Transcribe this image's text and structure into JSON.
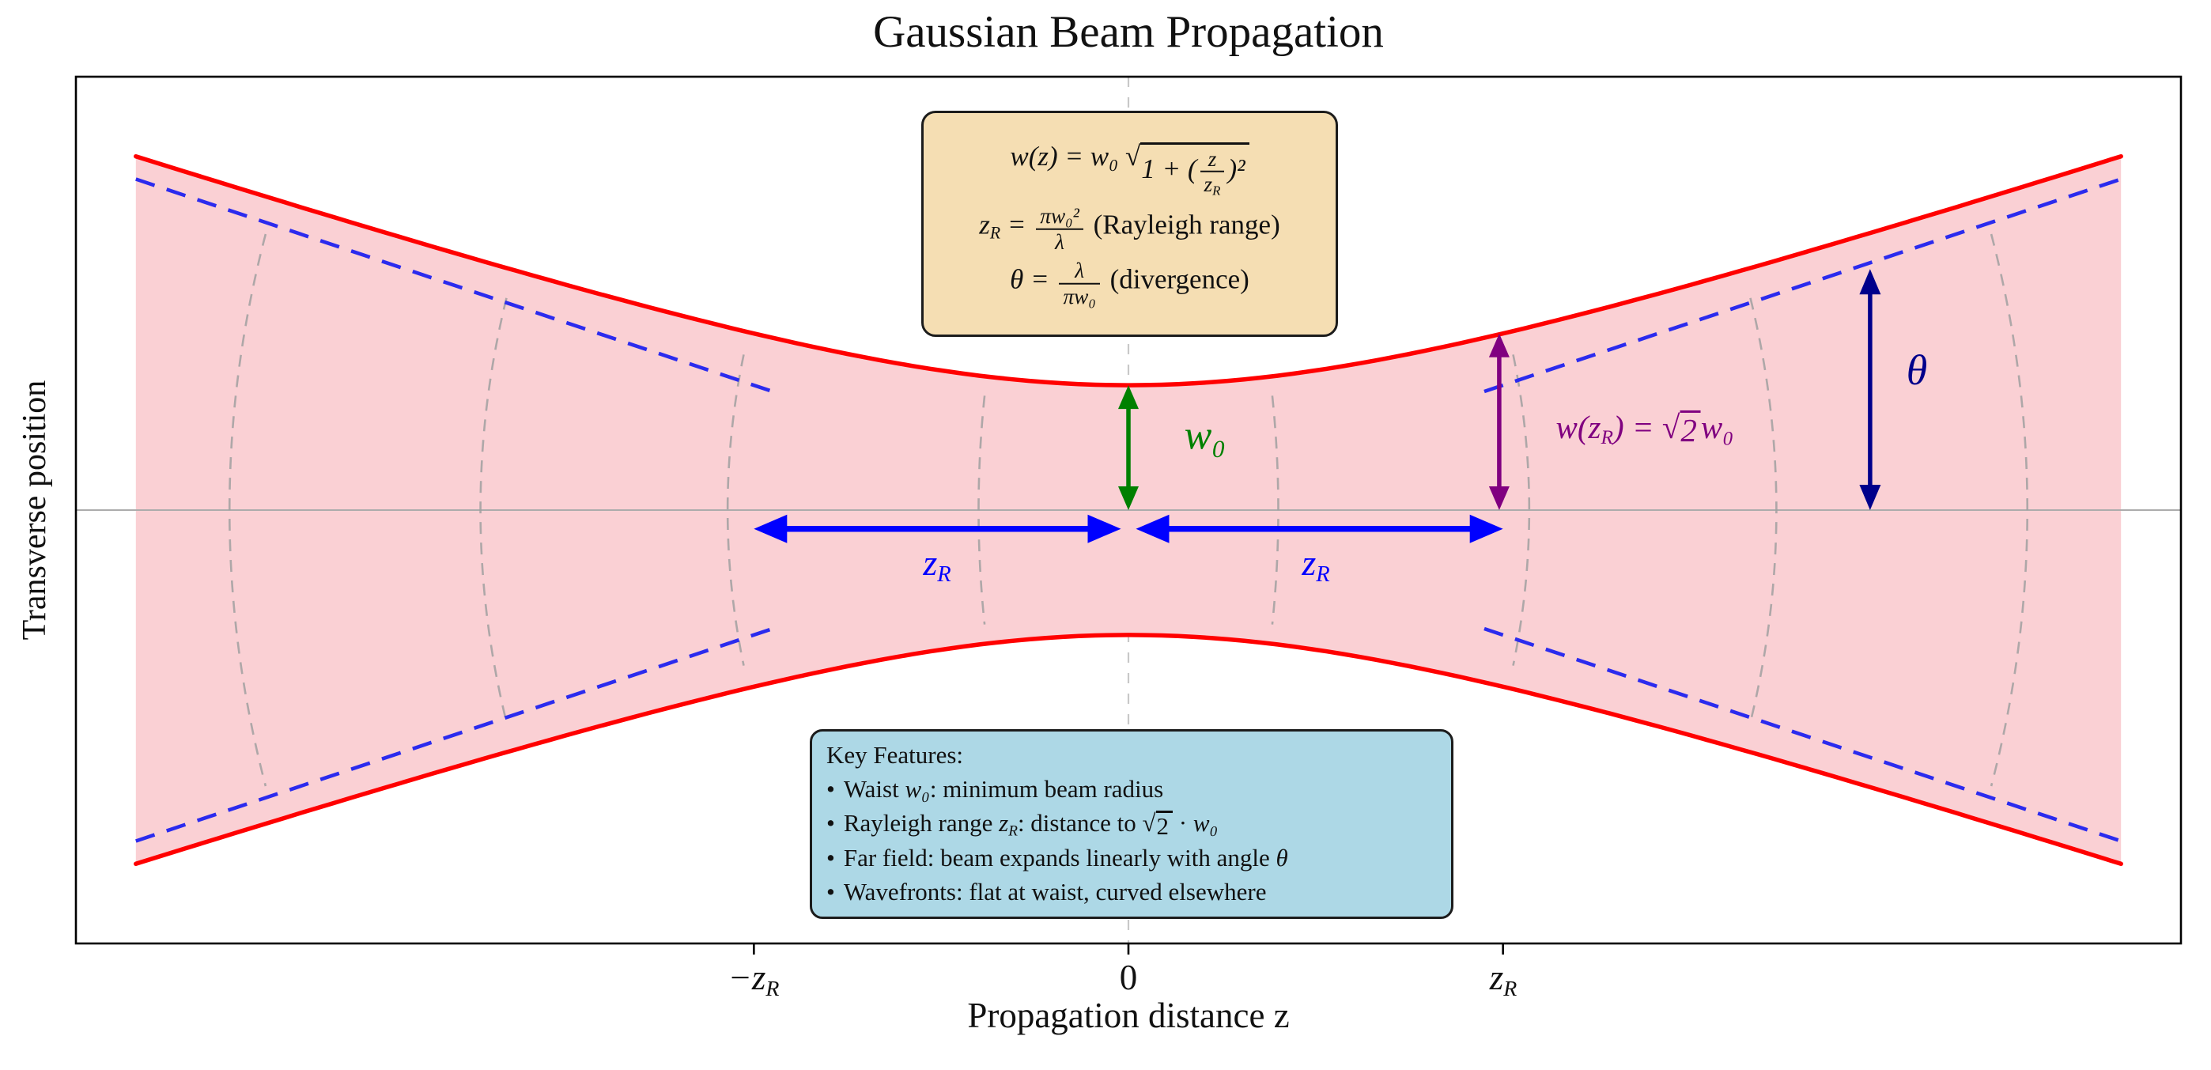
{
  "title": "Gaussian Beam Propagation",
  "axes": {
    "xlabel": "Propagation distance z",
    "ylabel": "Transverse position",
    "xtick_segments": [
      [
        {
          "i": [
            "−z",
            {
              "sub": [
                "R"
              ]
            }
          ]
        }
      ],
      [
        "0"
      ],
      [
        {
          "i": [
            "z",
            {
              "sub": [
                "R"
              ]
            }
          ]
        }
      ]
    ]
  },
  "formula_box": {
    "lines": [
      [
        "w(z) = w₀ ",
        {
          "sqrt": [
            "1 + (",
            {
              "frac": [
                [
                  "z"
                ],
                [
                  "z",
                  {
                    "sub": [
                      "R"
                    ]
                  }
                ]
              ]
            },
            ")²"
          ]
        }
      ],
      [
        "z",
        {
          "sub": [
            "R"
          ]
        },
        " = ",
        {
          "frac": [
            [
              "πw₀²"
            ],
            [
              "λ"
            ]
          ]
        },
        {
          "up": [
            " (Rayleigh range)"
          ]
        }
      ],
      [
        "θ = ",
        {
          "frac": [
            [
              "λ"
            ],
            [
              "πw₀"
            ]
          ]
        },
        {
          "up": [
            " (divergence)"
          ]
        }
      ]
    ]
  },
  "features_box": {
    "heading": "Key Features:",
    "bullet": "•",
    "items": [
      [
        "Waist ",
        {
          "i": [
            "w₀"
          ]
        },
        ": minimum beam radius"
      ],
      [
        "Rayleigh range ",
        {
          "i": [
            "z",
            {
              "sub": [
                "R"
              ]
            }
          ]
        },
        ": distance to ",
        {
          "sqrt": [
            "2"
          ]
        },
        " · ",
        {
          "i": [
            "w₀"
          ]
        }
      ],
      [
        "Far field: beam expands linearly with angle ",
        {
          "i": [
            "θ"
          ]
        }
      ],
      [
        "Wavefronts: flat at waist, curved elsewhere"
      ]
    ]
  },
  "annotations": {
    "w0_label": [
      "w₀"
    ],
    "zR_left_label": [
      "z",
      {
        "sub": [
          "R"
        ]
      }
    ],
    "zR_right_label": [
      "z",
      {
        "sub": [
          "R"
        ]
      }
    ],
    "w_at_zR_label": [
      "w(z",
      {
        "sub": [
          "R"
        ]
      },
      ") = ",
      {
        "sqrt": [
          "2"
        ]
      },
      "w₀"
    ],
    "theta_label": [
      "θ"
    ]
  },
  "colors": {
    "envelope_red": "#FF0000",
    "fill_pink": "#FAD0D4",
    "asymptote_blue": "#2B2BEE",
    "arrow_blue": "#0000FF",
    "green": "#008000",
    "purple": "#800080",
    "darkblue": "#00008B",
    "wavefront_gray": "#A0A0A0",
    "centerline_gray": "#C8C8C8",
    "axisline_gray": "#ACACAC",
    "frame_black": "#000000",
    "formula_bg": "#F5DEB3",
    "features_bg": "#ADD8E6",
    "box_border": "#1C1C1C"
  },
  "chart_data": {
    "type": "line",
    "title": "Gaussian Beam Propagation",
    "xlabel": "Propagation distance z",
    "ylabel": "Transverse position",
    "x_ticks": [
      {
        "z_over_zR": -1,
        "label": "-z_R"
      },
      {
        "z_over_zR": 0,
        "label": "0"
      },
      {
        "z_over_zR": 1,
        "label": "z_R"
      }
    ],
    "xlim_zR": [
      -2.81,
      2.81
    ],
    "ylim_w0": [
      -3.47,
      3.47
    ],
    "grid": false,
    "legend": "none",
    "beam": {
      "w0_normalized": 1,
      "zR_normalized": 1,
      "z_extent_zR": 2.65,
      "envelope_formula": "w(z) = w0*sqrt(1+(z/zR)^2)"
    },
    "envelope_samples": {
      "z_over_zR": [
        -2.65,
        -2,
        -1.5,
        -1,
        -0.5,
        0,
        0.5,
        1,
        1.5,
        2,
        2.65
      ],
      "w_over_w0": [
        2.83,
        2.24,
        1.8,
        1.41,
        1.12,
        1.0,
        1.12,
        1.41,
        1.8,
        2.24,
        2.83
      ]
    },
    "asymptotes": {
      "slope_w0_per_zR": 1,
      "segments_zR": [
        [
          -2.65,
          -0.95
        ],
        [
          0.95,
          2.65
        ]
      ],
      "style": "dashed"
    },
    "wavefronts": {
      "z_over_zR": [
        -2.4,
        -1.73,
        -1.07,
        -0.4,
        0.4,
        1.07,
        1.73,
        2.4
      ],
      "halfspan_w": 0.85,
      "radius_formula": "R(z) = z*(1+(zR/z)^2)",
      "style": "dashed"
    },
    "arrows": {
      "waist": {
        "z": 0,
        "w_from": 0,
        "w_to": 1
      },
      "w_at_zR": {
        "z": 0.99,
        "w_from": 0,
        "w_to": 1.414
      },
      "divergence": {
        "z": 1.98,
        "w_from": 0,
        "w_to": 1.93
      },
      "rayleigh_left": {
        "z_from": -1,
        "z_to": -0.02,
        "w": -0.15
      },
      "rayleigh_right": {
        "z_from": 0.02,
        "z_to": 1,
        "w": -0.15
      }
    }
  }
}
